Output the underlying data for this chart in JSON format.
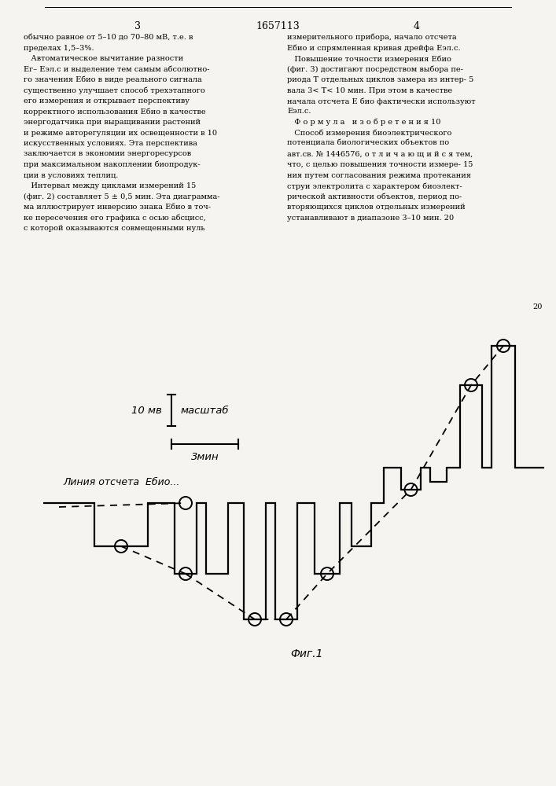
{
  "bg_color": "#f5f4f0",
  "text_color": "#111111",
  "title": "1657113",
  "page_left": "3",
  "page_right": "4",
  "fig_caption": "Фиг.1",
  "baseline_label": "Линия отсчета  Ебио...",
  "scale_v_label": "10 мв",
  "scale_h_label": "3мин",
  "scale_title": "масштаб",
  "left_col": [
    "обычно равное от 5–10 до 70–80 мВ, т.е. в",
    "пределах 1,5–3%.",
    "   Автоматическое вычитание разности",
    "Ег– Еэл.с и выделение тем самым абсолютно-",
    "го значения Ебио в виде реального сигнала",
    "существенно улучшает способ трехэтапного",
    "его измерения и открывает перспективу",
    "корректного использования Ебио в качестве",
    "энергодатчика при выращивании растений",
    "и режиме авторегуляции их освещенности в 10",
    "искусственных условиях. Эта перспектива",
    "заключается в экономии энергоресурсов",
    "при максимальном накоплении биопродук-",
    "ции в условиях теплиц.",
    "   Интервал между циклами измерений 15",
    "(фиг. 2) составляет 5 ± 0,5 мин. Эта диаграмма-",
    "ма иллюстрирует инверсию знака Ебио в точ-",
    "ке пересечения его графика с осью абсцисс,",
    "с которой оказываются совмещенными нуль"
  ],
  "right_col": [
    "измерительного прибора, начало отсчета",
    "Ебио и спрямленная кривая дрейфа Еэл.с.",
    "   Повышение точности измерения Ебио",
    "(фиг. 3) достигают посредством выбора пе-",
    "риода T отдельных циклов замера из интер- 5",
    "вала 3< T< 10 мин. При этом в качестве",
    "начала отсчета Е био фактически используют",
    "Еэл.с.",
    "   Ф о р м у л а   и з о б р е т е н и я 10",
    "   Способ измерения биоэлектрического",
    "потенциала биологических объектов по",
    "авт.св. № 1446576, о т л и ч а ю щ и й с я тем,",
    "что, с целью повышения точности измере- 15",
    "ния путем согласования режима протекания",
    "струи электролита с характером биоэлект-",
    "рической активности объектов, период по-",
    "вторяющихся циклов отдельных измерений",
    "устанавливают в диапазоне 3–10 мин. 20"
  ]
}
